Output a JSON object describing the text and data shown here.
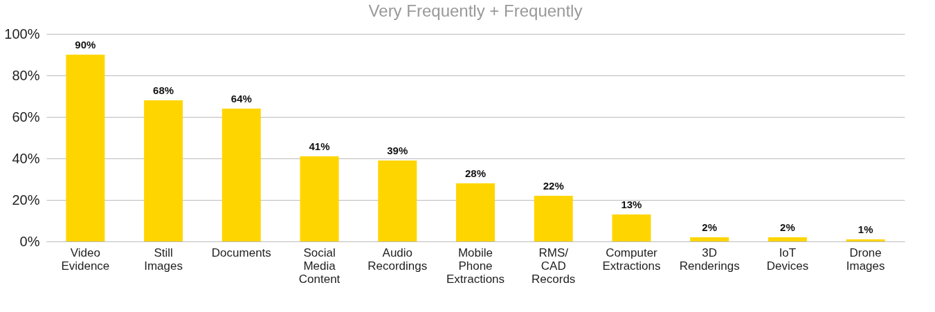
{
  "chart_data": {
    "type": "bar",
    "title": "Very Frequently + Frequently",
    "categories": [
      "Video Evidence",
      "Still Images",
      "Documents",
      "Social Media Content",
      "Audio Recordings",
      "Mobile Phone Extractions",
      "RMS/ CAD Records",
      "Computer Extractions",
      "3D Renderings",
      "IoT Devices",
      "Drone Images"
    ],
    "values": [
      90,
      68,
      64,
      41,
      39,
      28,
      22,
      13,
      2,
      2,
      1
    ],
    "value_labels": [
      "90%",
      "68%",
      "64%",
      "41%",
      "39%",
      "28%",
      "22%",
      "13%",
      "2%",
      "2%",
      "1%"
    ],
    "color": "#ffd500",
    "ylim": [
      0,
      100
    ],
    "yticks": [
      {
        "value": 0,
        "label": "0%"
      },
      {
        "value": 20,
        "label": "20%"
      },
      {
        "value": 40,
        "label": "40%"
      },
      {
        "value": 60,
        "label": "60%"
      },
      {
        "value": 80,
        "label": "80%"
      },
      {
        "value": 100,
        "label": "100%"
      }
    ],
    "grid": "y"
  }
}
